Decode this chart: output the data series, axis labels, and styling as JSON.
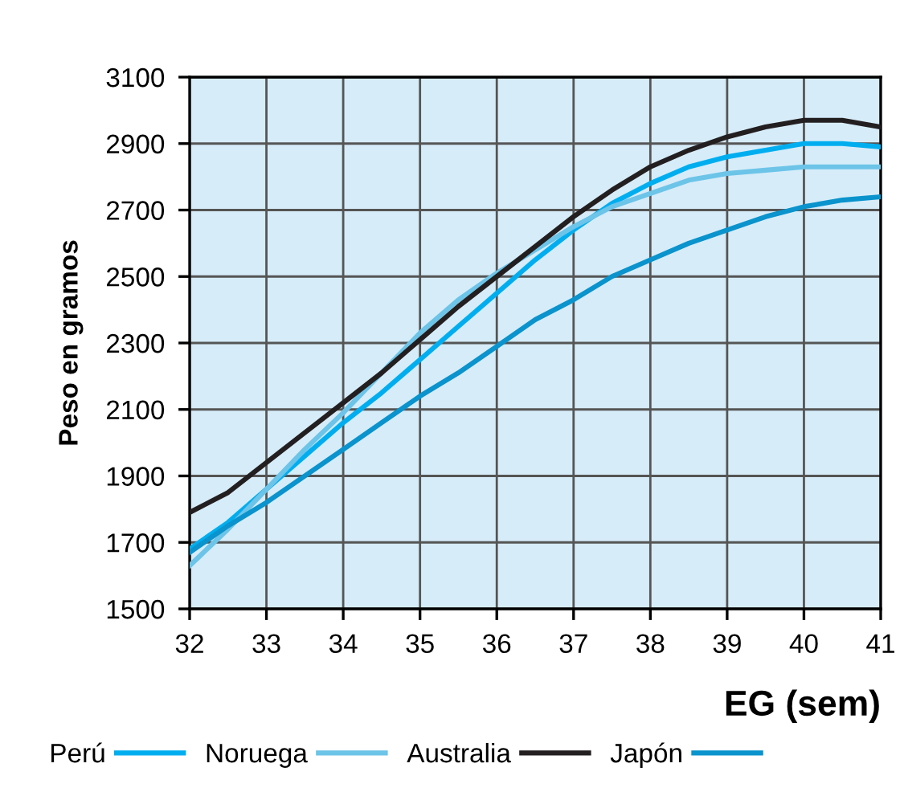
{
  "chart_data": {
    "type": "line",
    "xlabel": "EG (sem)",
    "ylabel": "Peso en gramos",
    "x": [
      32,
      32.5,
      33,
      33.5,
      34,
      34.5,
      35,
      35.5,
      36,
      36.5,
      37,
      37.5,
      38,
      38.5,
      39,
      39.5,
      40,
      40.5,
      41
    ],
    "series": [
      {
        "name": "Perú",
        "color": "#00aeef",
        "values": [
          1680,
          1760,
          1860,
          1960,
          2060,
          2150,
          2250,
          2350,
          2450,
          2550,
          2640,
          2720,
          2780,
          2830,
          2860,
          2880,
          2900,
          2900,
          2890
        ]
      },
      {
        "name": "Noruega",
        "color": "#6cc4e8",
        "values": [
          1630,
          1740,
          1860,
          1980,
          2090,
          2210,
          2330,
          2430,
          2510,
          2580,
          2650,
          2710,
          2750,
          2790,
          2810,
          2820,
          2830,
          2830,
          2830
        ]
      },
      {
        "name": "Australia",
        "color": "#231f20",
        "values": [
          1790,
          1850,
          1940,
          2030,
          2120,
          2210,
          2310,
          2410,
          2500,
          2590,
          2680,
          2760,
          2830,
          2880,
          2920,
          2950,
          2970,
          2970,
          2950
        ]
      },
      {
        "name": "Japón",
        "color": "#0a93cc",
        "values": [
          1670,
          1750,
          1820,
          1900,
          1980,
          2060,
          2140,
          2210,
          2290,
          2370,
          2430,
          2500,
          2550,
          2600,
          2640,
          2680,
          2710,
          2730,
          2740
        ]
      }
    ],
    "xlim": [
      32,
      41
    ],
    "ylim": [
      1500,
      3100
    ],
    "xticks": [
      32,
      33,
      34,
      35,
      36,
      37,
      38,
      39,
      40,
      41
    ],
    "yticks": [
      1500,
      1700,
      1900,
      2100,
      2300,
      2500,
      2700,
      2900,
      3100
    ],
    "grid": true,
    "legend": "bottom",
    "marker": "none",
    "line_style": "solid"
  }
}
